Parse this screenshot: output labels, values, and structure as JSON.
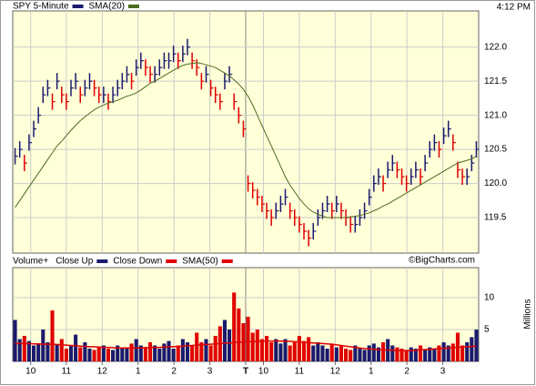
{
  "chart_data": [
    {
      "type": "ohlc",
      "time_label": "4:12 PM",
      "ylim": [
        118.98,
        122.53
      ],
      "yticks": [
        119.5,
        {
          "value": 120,
          "label": "120.0"
        },
        120.5,
        {
          "value": 121,
          "label": "121.0"
        },
        121.5,
        {
          "value": 122,
          "label": "122.0"
        }
      ],
      "grid": true,
      "up_color": "#1a1a6e",
      "down_color": "#e00000",
      "series": [
        {
          "name": "SPY 5-Minute",
          "color": "#1a1a6e",
          "high": [
            120.52,
            120.62,
            120.42,
            120.72,
            120.92,
            121.12,
            121.42,
            121.52,
            121.32,
            121.62,
            121.42,
            121.32,
            121.52,
            121.62,
            121.42,
            121.52,
            121.62,
            121.52,
            121.42,
            121.42,
            121.32,
            121.42,
            121.52,
            121.62,
            121.72,
            121.62,
            121.82,
            121.92,
            121.82,
            121.72,
            121.72,
            121.82,
            121.92,
            121.92,
            122.02,
            121.92,
            122.02,
            122.12,
            121.92,
            121.82,
            121.62,
            121.72,
            121.52,
            121.42,
            121.32,
            121.62,
            121.72,
            121.32,
            121.12,
            120.92,
            120.12,
            120.02,
            119.92,
            119.82,
            119.72,
            119.62,
            119.72,
            119.82,
            119.92,
            119.72,
            119.62,
            119.52,
            119.42,
            119.32,
            119.42,
            119.62,
            119.72,
            119.82,
            119.72,
            119.82,
            119.72,
            119.62,
            119.52,
            119.52,
            119.62,
            119.72,
            119.92,
            120.12,
            120.22,
            120.12,
            120.32,
            120.42,
            120.32,
            120.22,
            120.12,
            120.22,
            120.32,
            120.22,
            120.42,
            120.62,
            120.72,
            120.62,
            120.82,
            120.92,
            120.72,
            120.32,
            120.22,
            120.22,
            120.42,
            120.62
          ],
          "low": [
            120.28,
            120.38,
            120.18,
            120.48,
            120.68,
            120.88,
            121.18,
            121.28,
            121.08,
            121.38,
            121.18,
            121.08,
            121.28,
            121.38,
            121.18,
            121.28,
            121.38,
            121.28,
            121.18,
            121.18,
            121.08,
            121.18,
            121.28,
            121.38,
            121.48,
            121.38,
            121.58,
            121.68,
            121.58,
            121.48,
            121.48,
            121.58,
            121.68,
            121.68,
            121.78,
            121.68,
            121.78,
            121.88,
            121.68,
            121.58,
            121.38,
            121.48,
            121.28,
            121.18,
            121.08,
            121.38,
            121.48,
            121.08,
            120.88,
            120.68,
            119.88,
            119.78,
            119.68,
            119.58,
            119.48,
            119.38,
            119.48,
            119.58,
            119.68,
            119.48,
            119.38,
            119.28,
            119.18,
            119.08,
            119.18,
            119.38,
            119.48,
            119.58,
            119.48,
            119.58,
            119.48,
            119.38,
            119.28,
            119.28,
            119.38,
            119.48,
            119.68,
            119.88,
            119.98,
            119.88,
            120.08,
            120.18,
            120.08,
            119.98,
            119.88,
            119.98,
            120.08,
            119.98,
            120.18,
            120.38,
            120.48,
            120.38,
            120.58,
            120.68,
            120.48,
            120.08,
            119.98,
            119.98,
            120.18,
            120.38
          ],
          "values": [
            120.4,
            120.5,
            120.3,
            120.6,
            120.8,
            121.0,
            121.3,
            121.4,
            121.2,
            121.5,
            121.3,
            121.2,
            121.4,
            121.5,
            121.3,
            121.4,
            121.5,
            121.4,
            121.3,
            121.3,
            121.2,
            121.3,
            121.4,
            121.5,
            121.6,
            121.5,
            121.7,
            121.8,
            121.7,
            121.6,
            121.6,
            121.7,
            121.8,
            121.8,
            121.9,
            121.8,
            121.9,
            122.0,
            121.8,
            121.7,
            121.5,
            121.6,
            121.4,
            121.3,
            121.2,
            121.5,
            121.6,
            121.2,
            121.0,
            120.8,
            120.0,
            119.9,
            119.8,
            119.7,
            119.6,
            119.5,
            119.6,
            119.7,
            119.8,
            119.6,
            119.5,
            119.4,
            119.3,
            119.2,
            119.3,
            119.5,
            119.6,
            119.7,
            119.6,
            119.7,
            119.6,
            119.5,
            119.4,
            119.4,
            119.5,
            119.6,
            119.8,
            120.0,
            120.1,
            120.0,
            120.2,
            120.3,
            120.2,
            120.1,
            120.0,
            120.1,
            120.2,
            120.1,
            120.3,
            120.5,
            120.6,
            120.5,
            120.7,
            120.8,
            120.6,
            120.2,
            120.1,
            120.1,
            120.3,
            120.5
          ]
        },
        {
          "name": "SMA(20)",
          "color": "#4b6b1e",
          "values": [
            119.65,
            119.75,
            119.85,
            119.95,
            120.05,
            120.15,
            120.25,
            120.35,
            120.45,
            120.55,
            120.62,
            120.7,
            120.78,
            120.85,
            120.92,
            120.98,
            121.03,
            121.08,
            121.12,
            121.15,
            121.18,
            121.2,
            121.22,
            121.25,
            121.28,
            121.3,
            121.33,
            121.37,
            121.42,
            121.47,
            121.5,
            121.54,
            121.58,
            121.62,
            121.66,
            121.7,
            121.73,
            121.75,
            121.76,
            121.77,
            121.76,
            121.74,
            121.72,
            121.7,
            121.66,
            121.62,
            121.58,
            121.52,
            121.46,
            121.38,
            121.28,
            121.15,
            121.0,
            120.85,
            120.7,
            120.55,
            120.4,
            120.25,
            120.1,
            119.98,
            119.88,
            119.78,
            119.7,
            119.63,
            119.58,
            119.55,
            119.52,
            119.5,
            119.5,
            119.5,
            119.5,
            119.5,
            119.51,
            119.52,
            119.53,
            119.55,
            119.57,
            119.6,
            119.63,
            119.67,
            119.7,
            119.74,
            119.78,
            119.82,
            119.86,
            119.9,
            119.94,
            119.98,
            120.02,
            120.06,
            120.1,
            120.14,
            120.18,
            120.22,
            120.26,
            120.3,
            120.32,
            120.34,
            120.36,
            120.4
          ]
        }
      ]
    },
    {
      "type": "bar",
      "title": "Volume+",
      "ylabel": "Millions",
      "credit": "©BigCharts.com",
      "ylim": [
        0,
        14.7
      ],
      "yticks": [
        5,
        10
      ],
      "xlim": [
        0,
        100
      ],
      "xticks": [
        {
          "value": 3.85,
          "label": "10"
        },
        {
          "value": 11.5,
          "label": "11"
        },
        {
          "value": 19.2,
          "label": "12"
        },
        {
          "value": 26.9,
          "label": "1"
        },
        {
          "value": 34.6,
          "label": "2"
        },
        {
          "value": 42.3,
          "label": "3"
        },
        {
          "value": 50,
          "label": "T"
        },
        {
          "value": 53.8,
          "label": "10"
        },
        {
          "value": 61.5,
          "label": "11"
        },
        {
          "value": 69.2,
          "label": "12"
        },
        {
          "value": 76.9,
          "label": "1"
        },
        {
          "value": 84.6,
          "label": "2"
        },
        {
          "value": 92.3,
          "label": "3"
        }
      ],
      "legend": [
        {
          "name": "Close Up",
          "color": "#1a1a6e"
        },
        {
          "name": "Close Down",
          "color": "#e00000"
        }
      ],
      "values": [
        6.5,
        3.5,
        4.0,
        3.2,
        2.5,
        2.8,
        5.0,
        3.0,
        8.0,
        2.7,
        3.5,
        2.0,
        2.5,
        4.2,
        2.2,
        3.0,
        2.0,
        1.8,
        2.2,
        2.5,
        2.0,
        1.8,
        2.5,
        2.0,
        2.2,
        2.8,
        3.5,
        2.5,
        2.2,
        3.0,
        2.5,
        2.0,
        2.8,
        3.2,
        2.0,
        2.5,
        3.5,
        3.0,
        2.5,
        4.5,
        3.0,
        3.5,
        2.5,
        4.0,
        5.5,
        6.5,
        5.0,
        10.8,
        8.3,
        6.0,
        7.0,
        4.5,
        5.0,
        3.5,
        4.0,
        3.0,
        3.5,
        2.8,
        3.5,
        2.5,
        3.0,
        4.0,
        3.2,
        3.8,
        2.5,
        3.0,
        2.5,
        2.0,
        2.8,
        2.2,
        2.5,
        2.0,
        1.8,
        2.5,
        2.0,
        1.8,
        2.5,
        2.8,
        2.2,
        3.0,
        3.5,
        2.5,
        2.2,
        2.0,
        1.8,
        2.2,
        2.0,
        2.5,
        1.8,
        2.2,
        2.0,
        2.5,
        3.0,
        2.5,
        2.8,
        4.5,
        2.5,
        3.0,
        3.8,
        5.0
      ],
      "series": [
        {
          "name": "SMA(50)",
          "color": "#e00000",
          "values": [
            2.8,
            2.8,
            2.8,
            2.8,
            2.75,
            2.75,
            2.7,
            2.7,
            2.7,
            2.65,
            2.6,
            2.55,
            2.5,
            2.45,
            2.4,
            2.35,
            2.3,
            2.3,
            2.25,
            2.2,
            2.2,
            2.15,
            2.1,
            2.1,
            2.1,
            2.1,
            2.1,
            2.1,
            2.15,
            2.15,
            2.2,
            2.2,
            2.25,
            2.3,
            2.3,
            2.35,
            2.4,
            2.45,
            2.5,
            2.55,
            2.6,
            2.65,
            2.7,
            2.75,
            2.8,
            2.85,
            2.9,
            2.95,
            3.0,
            3.05,
            3.1,
            3.1,
            3.15,
            3.15,
            3.2,
            3.2,
            3.2,
            3.2,
            3.15,
            3.15,
            3.1,
            3.05,
            3.0,
            2.95,
            2.9,
            2.85,
            2.8,
            2.75,
            2.7,
            2.6,
            2.5,
            2.4,
            2.3,
            2.2,
            2.1,
            2.0,
            1.95,
            1.9,
            1.85,
            1.8,
            1.8,
            1.75,
            1.75,
            1.7,
            1.7,
            1.7,
            1.75,
            1.8,
            1.85,
            1.9,
            1.95,
            2.0,
            2.05,
            2.1,
            2.15,
            2.2,
            2.25,
            2.3,
            2.35,
            2.4
          ]
        }
      ]
    }
  ]
}
